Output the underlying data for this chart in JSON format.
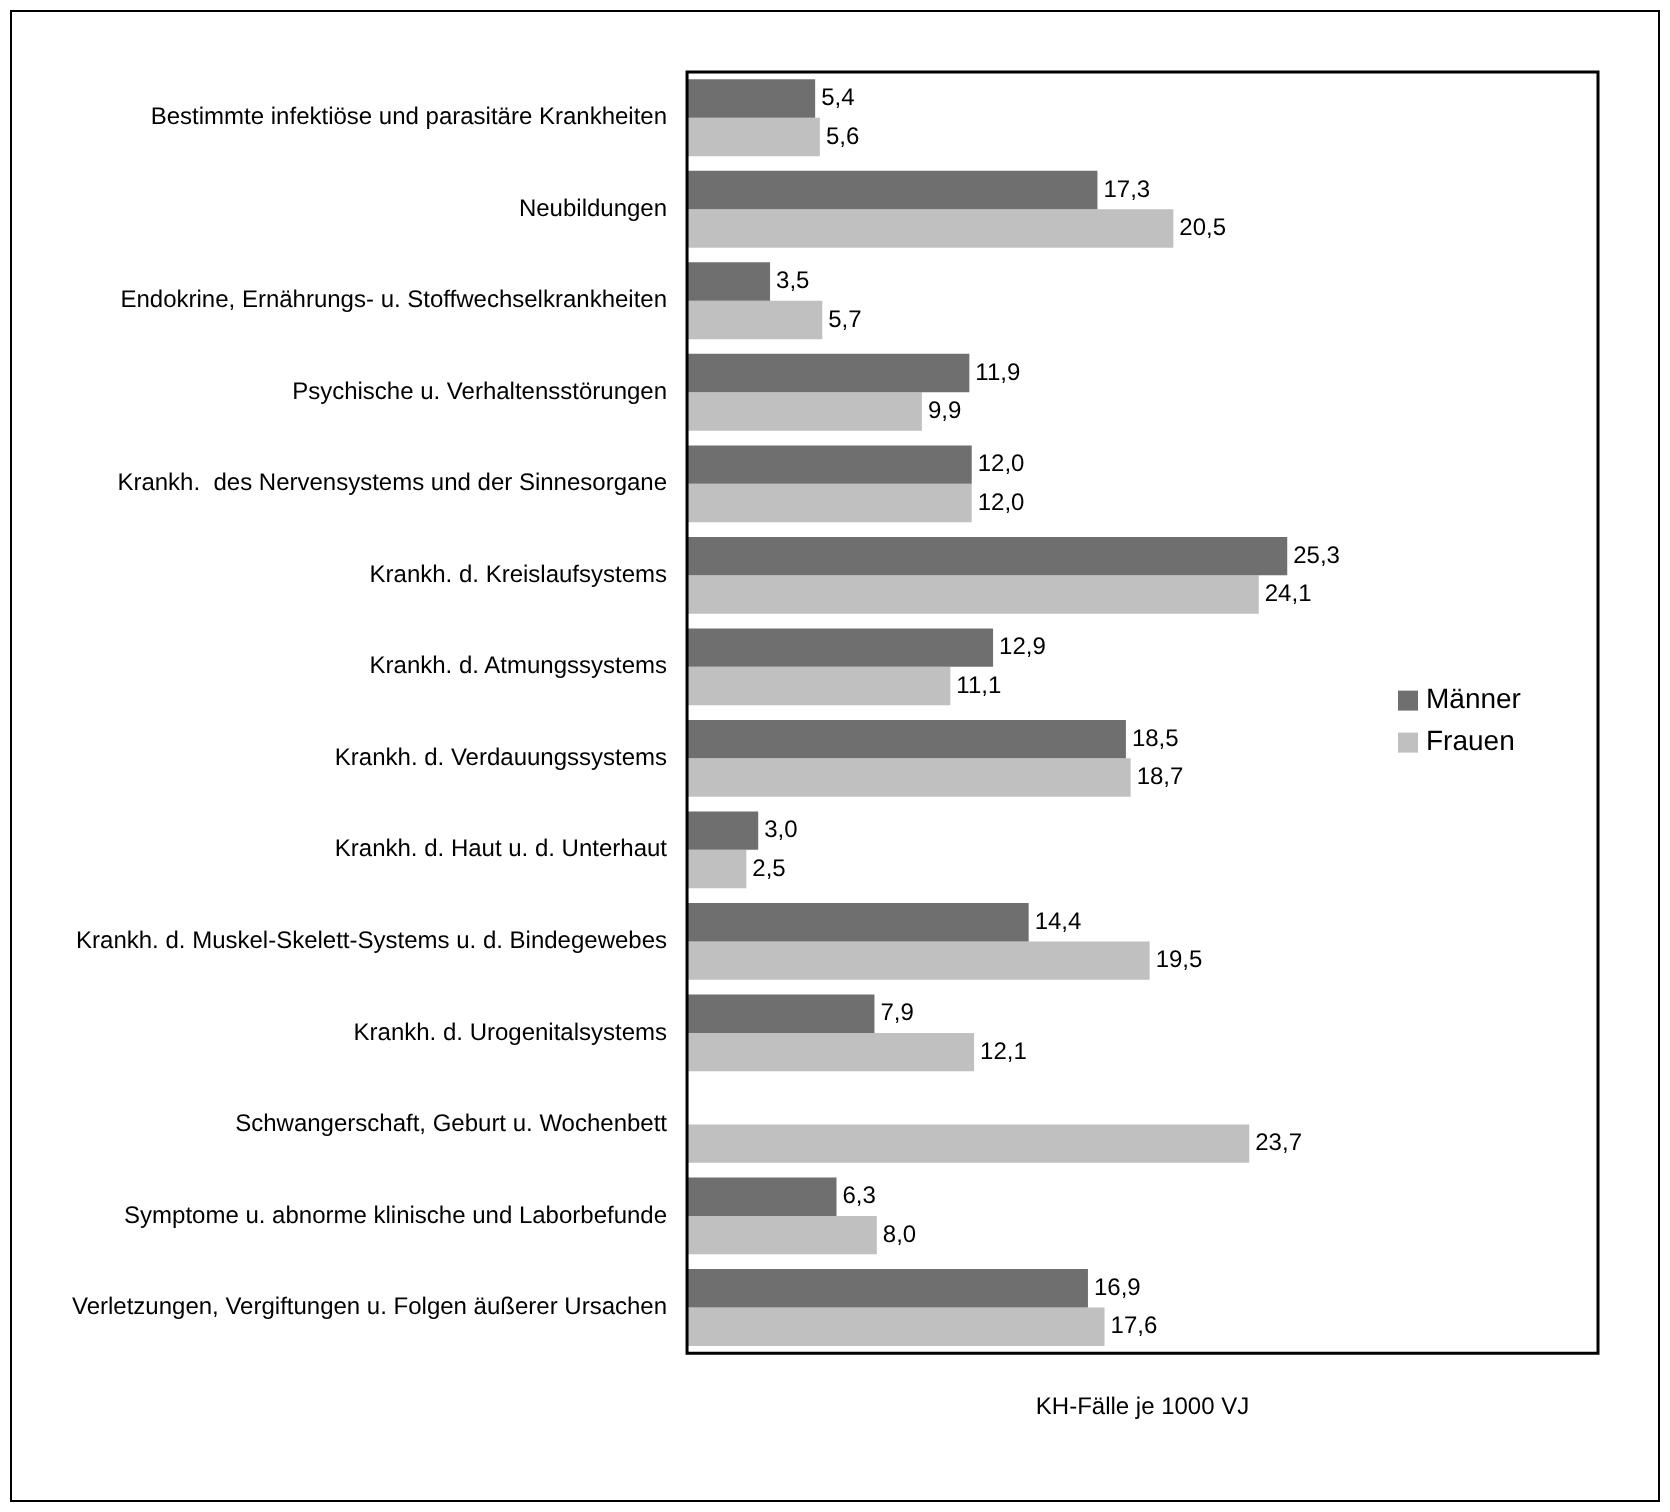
{
  "chart_data": {
    "type": "bar",
    "orientation": "horizontal",
    "xlabel": "KH-Fälle je 1000 VJ",
    "categories": [
      "Bestimmte infektiöse und parasitäre Krankheiten",
      "Neubildungen",
      "Endokrine, Ernährungs- u. Stoffwechselkrankheiten",
      "Psychische u. Verhaltensstörungen",
      "Krankh.  des Nervensystems und der Sinnesorgane",
      "Krankh. d. Kreislaufsystems",
      "Krankh. d. Atmungssystems",
      "Krankh. d. Verdauungssystems",
      "Krankh. d. Haut u. d. Unterhaut",
      "Krankh. d. Muskel-Skelett-Systems u. d. Bindegewebes",
      "Krankh. d. Urogenitalsystems",
      "Schwangerschaft, Geburt u. Wochenbett",
      "Symptome u. abnorme klinische und Laborbefunde",
      "Verletzungen, Vergiftungen u. Folgen äußerer Ursachen"
    ],
    "series": [
      {
        "name": "Männer",
        "color": "#6f6f6f",
        "values": [
          5.4,
          17.3,
          3.5,
          11.9,
          12.0,
          25.3,
          12.9,
          18.5,
          3.0,
          14.4,
          7.9,
          null,
          6.3,
          16.9
        ],
        "value_labels": [
          "5,4",
          "17,3",
          "3,5",
          "11,9",
          "12,0",
          "25,3",
          "12,9",
          "18,5",
          "3,0",
          "14,4",
          "7,9",
          null,
          "6,3",
          "16,9"
        ]
      },
      {
        "name": "Frauen",
        "color": "#c0c0c0",
        "values": [
          5.6,
          20.5,
          5.7,
          9.9,
          12.0,
          24.1,
          11.1,
          18.7,
          2.5,
          19.5,
          12.1,
          23.7,
          8.0,
          17.6
        ],
        "value_labels": [
          "5,6",
          "20,5",
          "5,7",
          "9,9",
          "12,0",
          "24,1",
          "11,1",
          "18,7",
          "2,5",
          "19,5",
          "12,1",
          "23,7",
          "8,0",
          "17,6"
        ]
      }
    ],
    "xlim": [
      0,
      38.4
    ],
    "legend": "right",
    "tick_labels": "y"
  }
}
